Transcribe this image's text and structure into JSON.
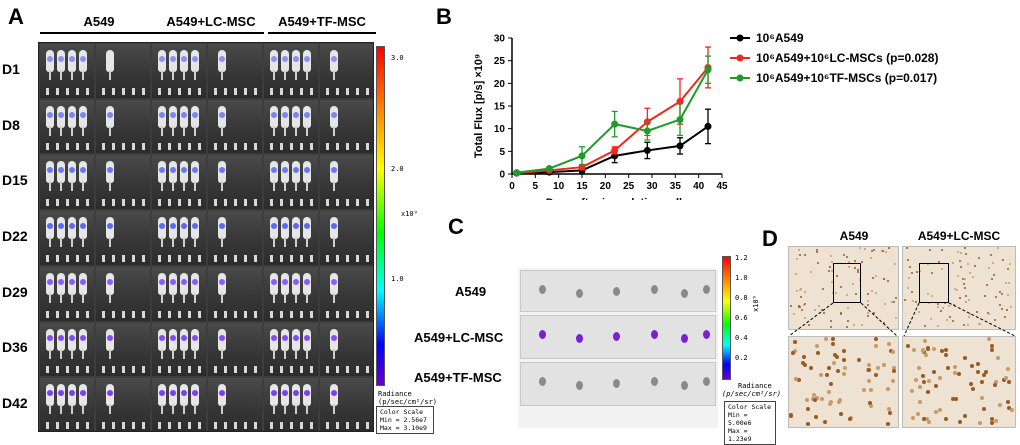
{
  "panels": {
    "a": "A",
    "b": "B",
    "c": "C",
    "d": "D"
  },
  "panelA": {
    "groups": [
      "A549",
      "A549+LC-MSC",
      "A549+TF-MSC"
    ],
    "days": [
      "D1",
      "D8",
      "D15",
      "D22",
      "D29",
      "D36",
      "D42"
    ],
    "colorbar": {
      "ticks": [
        "3.0",
        "2.0",
        "1.0"
      ],
      "exponent": "x10⁹",
      "radiance_label": "Radiance",
      "units": "(p/sec/cm²/sr)",
      "scale_title": "Color Scale",
      "min": "Min = 2.56e7",
      "max": "Max = 3.10e9"
    }
  },
  "chart_data": {
    "type": "line",
    "ylabel": "Total Flux [p/s] ×10⁹",
    "xlabel": "Days after inoculating cells",
    "xlim": [
      0,
      45
    ],
    "ylim": [
      0,
      30
    ],
    "xticks": [
      0,
      5,
      10,
      15,
      20,
      25,
      30,
      35,
      40,
      45
    ],
    "yticks": [
      0,
      5,
      10,
      15,
      20,
      25,
      30
    ],
    "series": [
      {
        "name": "10⁶A549",
        "color": "#000000",
        "x": [
          1,
          8,
          15,
          22,
          29,
          36,
          42
        ],
        "y": [
          0.2,
          0.4,
          0.8,
          4.0,
          5.2,
          6.2,
          10.5
        ],
        "err": [
          0.2,
          0.3,
          0.5,
          1.5,
          1.8,
          1.8,
          3.8
        ]
      },
      {
        "name": "10⁶A549+10⁶LC-MSCs (p=0.028)",
        "color": "#ee2a1d",
        "x": [
          1,
          8,
          15,
          22,
          29,
          36,
          42
        ],
        "y": [
          0.2,
          0.8,
          1.5,
          5.2,
          11.5,
          16.0,
          23.5
        ],
        "err": [
          0.2,
          0.3,
          0.6,
          0.8,
          3.0,
          5.0,
          4.5
        ]
      },
      {
        "name": "10⁶A549+10⁶TF-MSCs (p=0.017)",
        "color": "#1f9a2b",
        "x": [
          1,
          8,
          15,
          22,
          29,
          36,
          42
        ],
        "y": [
          0.3,
          1.2,
          4.0,
          11.0,
          9.5,
          12.0,
          23.0
        ],
        "err": [
          0.2,
          0.3,
          2.0,
          2.8,
          2.0,
          3.5,
          3.0
        ]
      }
    ]
  },
  "panelC": {
    "labels": [
      "A549",
      "A549+LC-MSC",
      "A549+TF-MSC"
    ],
    "colorbar": {
      "ticks": [
        "1.2",
        "1.0",
        "0.8",
        "0.6",
        "0.4",
        "0.2"
      ],
      "exponent": "x10⁹",
      "radiance_label": "Radiance",
      "units": "(p/sec/cm²/sr)",
      "scale_title": "Color Scale",
      "min": "Min = 5.00e6",
      "max": "Max = 1.23e9"
    }
  },
  "panelD": {
    "headers": [
      "A549",
      "A549+LC-MSC"
    ]
  },
  "colors": {
    "black": "#000000",
    "red": "#ee2a1d",
    "green": "#1f9a2b"
  }
}
